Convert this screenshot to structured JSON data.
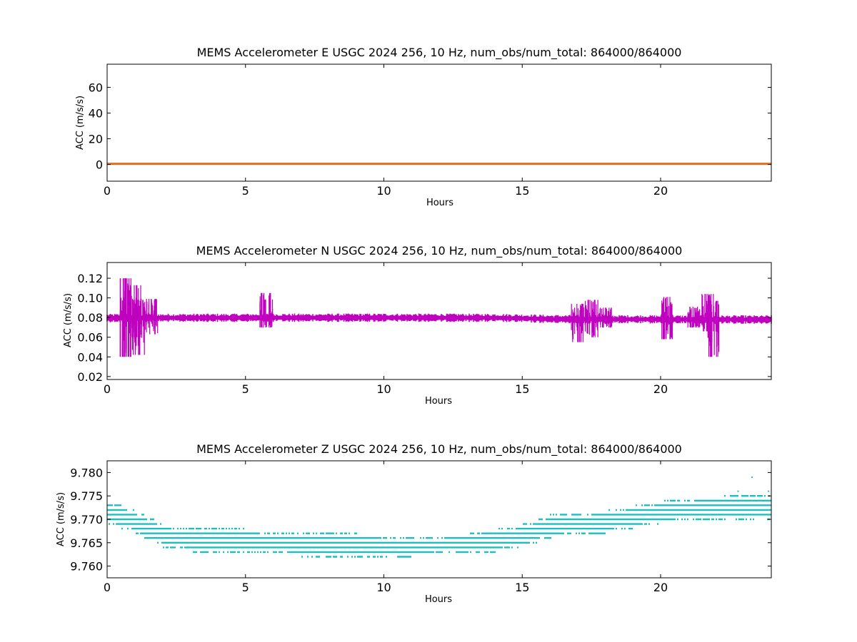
{
  "colors": {
    "east": "#e0701c",
    "north": "#bf00bf",
    "vertical": "#1cbfbf",
    "axes": "#000000",
    "background": "#ffffff"
  },
  "chart_data": [
    {
      "type": "scatter",
      "title": "MEMS Accelerometer E USGC 2024 256, 10 Hz, num_obs/num_total: 864000/864000",
      "xlabel": "Hours",
      "ylabel": "ACC (m/s/s)",
      "xlim": [
        0,
        24
      ],
      "ylim": [
        -13,
        78
      ],
      "xticks": [
        0,
        5,
        10,
        15,
        20
      ],
      "xtick_labels": [
        "0",
        "5",
        "10",
        "15",
        "20"
      ],
      "yticks": [
        0,
        20,
        40,
        60
      ],
      "ytick_labels": [
        "0",
        "20",
        "40",
        "60"
      ],
      "series": [
        {
          "x": [
            0,
            24
          ],
          "values": [
            0.5,
            0.5
          ]
        }
      ],
      "grid": false
    },
    {
      "type": "scatter",
      "title": "MEMS Accelerometer N USGC 2024 256, 10 Hz, num_obs/num_total: 864000/864000",
      "xlabel": "Hours",
      "ylabel": "ACC (m/s/s)",
      "xlim": [
        0,
        24
      ],
      "ylim": [
        0.017,
        0.136
      ],
      "xticks": [
        0,
        5,
        10,
        15,
        20
      ],
      "xtick_labels": [
        "0",
        "5",
        "10",
        "15",
        "20"
      ],
      "yticks": [
        0.02,
        0.04,
        0.06,
        0.08,
        0.1,
        0.12
      ],
      "ytick_labels": [
        "0.02",
        "0.04",
        "0.06",
        "0.08",
        "0.10",
        "0.12"
      ],
      "series": [
        {
          "baseline": {
            "x": [
              0,
              2,
              5,
              10,
              14,
              15,
              16,
              18,
              20,
              22,
              24
            ],
            "values": [
              0.0795,
              0.0797,
              0.0798,
              0.0799,
              0.0797,
              0.0792,
              0.0785,
              0.0783,
              0.0782,
              0.078,
              0.078
            ]
          },
          "bursts": [
            {
              "x": 0.7,
              "min": 0.04,
              "max": 0.12
            },
            {
              "x": 1.0,
              "min": 0.06,
              "max": 0.113
            },
            {
              "x": 1.15,
              "min": 0.042,
              "max": 0.098
            },
            {
              "x": 1.6,
              "min": 0.063,
              "max": 0.099
            },
            {
              "x": 5.75,
              "min": 0.07,
              "max": 0.105
            },
            {
              "x": 17.0,
              "min": 0.055,
              "max": 0.094
            },
            {
              "x": 17.5,
              "min": 0.06,
              "max": 0.098
            },
            {
              "x": 18.0,
              "min": 0.07,
              "max": 0.09
            },
            {
              "x": 20.2,
              "min": 0.058,
              "max": 0.101
            },
            {
              "x": 21.2,
              "min": 0.07,
              "max": 0.091
            },
            {
              "x": 21.7,
              "min": 0.066,
              "max": 0.104
            },
            {
              "x": 21.9,
              "min": 0.04,
              "max": 0.097
            }
          ]
        }
      ],
      "grid": false
    },
    {
      "type": "scatter",
      "title": "MEMS Accelerometer Z USGC 2024 256, 10 Hz, num_obs/num_total: 864000/864000",
      "xlabel": "Hours",
      "ylabel": "ACC (m/s/s)",
      "xlim": [
        0,
        24
      ],
      "ylim": [
        9.7575,
        9.7825
      ],
      "xticks": [
        0,
        5,
        10,
        15,
        20
      ],
      "xtick_labels": [
        "0",
        "5",
        "10",
        "15",
        "20"
      ],
      "yticks": [
        9.76,
        9.765,
        9.77,
        9.775,
        9.78
      ],
      "ytick_labels": [
        "9.760",
        "9.765",
        "9.770",
        "9.775",
        "9.780"
      ],
      "series": [
        {
          "quantization_step": 0.001,
          "envelope": [
            {
              "x": 0.0,
              "min": 9.769,
              "max": 9.774
            },
            {
              "x": 1.0,
              "min": 9.767,
              "max": 9.772
            },
            {
              "x": 2.0,
              "min": 9.764,
              "max": 9.769
            },
            {
              "x": 3.0,
              "min": 9.763,
              "max": 9.768
            },
            {
              "x": 5.0,
              "min": 9.763,
              "max": 9.768
            },
            {
              "x": 7.0,
              "min": 9.762,
              "max": 9.767
            },
            {
              "x": 9.0,
              "min": 9.762,
              "max": 9.767
            },
            {
              "x": 11.0,
              "min": 9.762,
              "max": 9.766
            },
            {
              "x": 13.0,
              "min": 9.763,
              "max": 9.767
            },
            {
              "x": 14.0,
              "min": 9.763,
              "max": 9.768
            },
            {
              "x": 15.0,
              "min": 9.764,
              "max": 9.769
            },
            {
              "x": 16.0,
              "min": 9.766,
              "max": 9.771
            },
            {
              "x": 18.0,
              "min": 9.767,
              "max": 9.772
            },
            {
              "x": 19.0,
              "min": 9.768,
              "max": 9.773
            },
            {
              "x": 20.0,
              "min": 9.769,
              "max": 9.774
            },
            {
              "x": 22.0,
              "min": 9.77,
              "max": 9.775
            },
            {
              "x": 24.0,
              "min": 9.77,
              "max": 9.775
            }
          ],
          "outliers": [
            {
              "x": 23.3,
              "y": 9.779
            },
            {
              "x": 22.8,
              "y": 9.776
            },
            {
              "x": 23.9,
              "y": 9.776
            }
          ]
        }
      ],
      "grid": false
    }
  ]
}
